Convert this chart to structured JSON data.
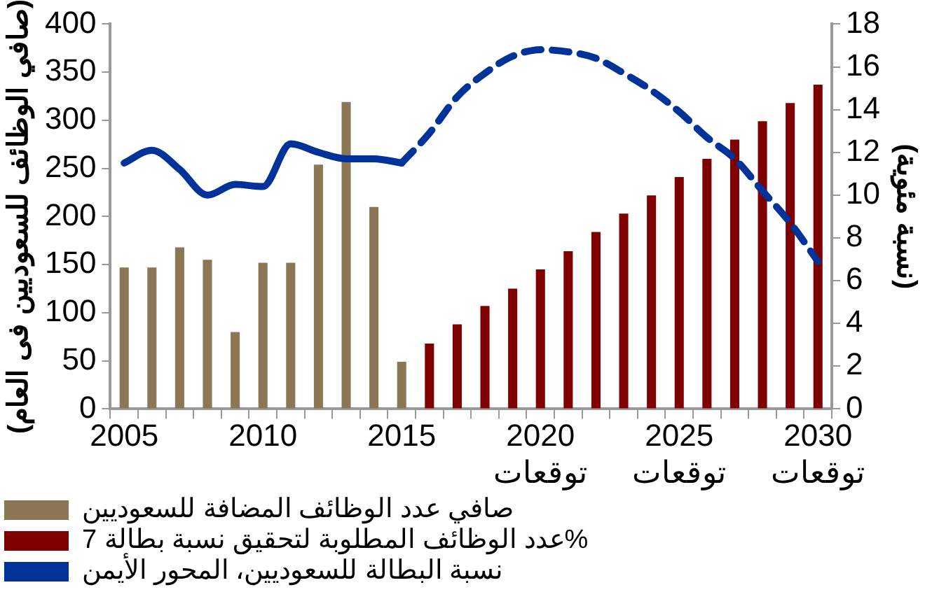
{
  "chart_data": {
    "type": "bar",
    "categories": [
      "2005",
      null,
      null,
      null,
      null,
      "2010",
      null,
      null,
      null,
      null,
      "2015",
      null,
      null,
      null,
      null,
      "2020\nتوقعات",
      null,
      null,
      null,
      null,
      "2025\nتوقعات",
      null,
      null,
      null,
      null,
      "2030\nتوقعات"
    ],
    "series": [
      {
        "name": "صافي عدد الوظائف المضافة للسعوديين",
        "color": "#8b7755",
        "values": [
          147,
          147,
          168,
          155,
          80,
          152,
          152,
          254,
          319,
          210,
          49,
          null,
          null,
          null,
          null,
          null,
          null,
          null,
          null,
          null,
          null,
          null,
          null,
          null,
          null,
          null
        ]
      },
      {
        "name": "عدد الوظائف المطلوبة لتحقيق نسبة بطالة 7%",
        "color": "#7f0000",
        "values": [
          null,
          null,
          null,
          null,
          null,
          null,
          null,
          null,
          null,
          null,
          null,
          68,
          88,
          107,
          125,
          145,
          164,
          184,
          203,
          222,
          241,
          260,
          280,
          299,
          318,
          337
        ]
      },
      {
        "name": "نسبة البطالة للسعوديين، المحور الأيمن",
        "type": "line",
        "axis": "y2",
        "color": "#003399",
        "line_style": "solid",
        "values": [
          11.5,
          12.1,
          11.2,
          10.0,
          10.5,
          10.4,
          12.4,
          12.0,
          11.7,
          11.7,
          11.5,
          null,
          null,
          null,
          null,
          null,
          null,
          null,
          null,
          null,
          null,
          null,
          null,
          null,
          null,
          null
        ]
      },
      {
        "type": "line",
        "axis": "y2",
        "color": "#003399",
        "line_style": "dashed",
        "values": [
          null,
          null,
          null,
          null,
          null,
          null,
          null,
          null,
          null,
          null,
          11.5,
          12.9,
          14.6,
          15.7,
          16.5,
          16.8,
          16.7,
          16.4,
          15.7,
          14.9,
          13.9,
          12.7,
          11.7,
          10.2,
          8.7,
          6.9
        ]
      }
    ],
    "ylabel": "(صافي الوظائف للسعوديين فى العام)",
    "y2label": "(نسبة مئوية)",
    "ylim": [
      0,
      400
    ],
    "yticks": [
      0,
      50,
      100,
      150,
      200,
      250,
      300,
      350,
      400
    ],
    "y2lim": [
      0,
      18
    ],
    "y2ticks": [
      0,
      2,
      4,
      6,
      8,
      10,
      12,
      14,
      16,
      18
    ],
    "grid": false,
    "legend": "bottom left",
    "marker": "none"
  }
}
